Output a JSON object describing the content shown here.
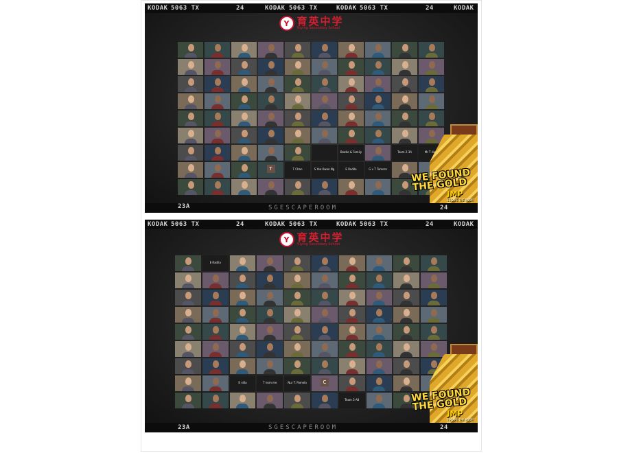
{
  "film": {
    "brand": "KODAK",
    "stock": "5063 TX",
    "frame_num": "24",
    "edge_frame": "23A",
    "edge_text": "SGESCAPEROOM"
  },
  "logo": {
    "chinese": "育英中学",
    "english": "Yuying Secondary School",
    "crest": "Y"
  },
  "banner": {
    "line1": "WE FOUND",
    "line2": "THE GOLD",
    "brand": "JMP",
    "tagline": "ESCAPE THE ROOM"
  },
  "top_panel": {
    "special_tiles": {
      "65": {
        "type": "blank"
      },
      "66": {
        "type": "label",
        "text": "Beatie & Family"
      },
      "68": {
        "type": "label",
        "text": "Team 2-3A"
      },
      "69": {
        "type": "label",
        "text": "Mr T Halls"
      },
      "73": {
        "type": "initial",
        "text": "T"
      },
      "74": {
        "type": "label",
        "text": "T Chan"
      },
      "75": {
        "type": "label",
        "text": "S Yeo Kwan Ng"
      },
      "76": {
        "type": "label",
        "text": "E Radila"
      },
      "77": {
        "type": "label",
        "text": "G v T Tamera"
      }
    }
  },
  "bottom_panel": {
    "special_tiles": {
      "1": {
        "type": "label",
        "text": "E Radila"
      },
      "72": {
        "type": "label",
        "text": "E nilla"
      },
      "73": {
        "type": "label",
        "text": "T nom me"
      },
      "74": {
        "type": "label",
        "text": "Nur T. Pamela"
      },
      "75": {
        "type": "initial",
        "text": "C"
      },
      "86": {
        "type": "label",
        "text": "Team 5 A8"
      }
    }
  }
}
